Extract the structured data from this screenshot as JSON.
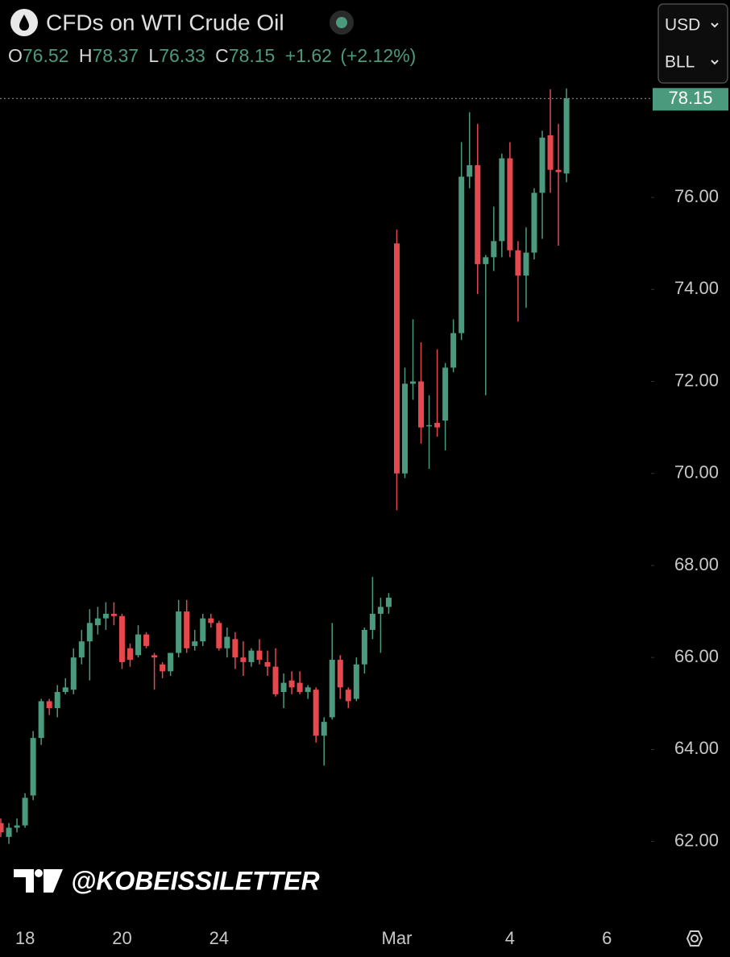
{
  "chart_data": {
    "type": "candlestick",
    "title": "CFDs on WTI Crude Oil",
    "ohlc_header": [
      {
        "label": "O",
        "value": 76.52
      },
      {
        "label": "H",
        "value": 78.37
      },
      {
        "label": "L",
        "value": 76.33
      },
      {
        "label": "C",
        "value": 78.15
      }
    ],
    "change": {
      "value": 1.62,
      "label": "+1.62"
    },
    "change_percent": {
      "value": 2.12,
      "label": "(+2.12%)"
    },
    "currency": "USD",
    "unit": "BLL",
    "watermark": "@KOBEISSILETTER",
    "up_color": "#4c9a7e",
    "down_color": "#e5484d",
    "categories": [
      null,
      null,
      null,
      "18",
      null,
      null,
      null,
      null,
      null,
      null,
      null,
      null,
      null,
      null,
      null,
      "20",
      null,
      null,
      null,
      null,
      null,
      null,
      null,
      null,
      null,
      null,
      null,
      "24",
      null,
      null,
      null,
      null,
      null,
      null,
      null,
      null,
      null,
      null,
      null,
      null,
      null,
      null,
      null,
      null,
      null,
      null,
      null,
      null,
      null,
      "Mar",
      null,
      null,
      null,
      null,
      null,
      null,
      null,
      null,
      null,
      null,
      null,
      null,
      null,
      "4",
      null,
      null,
      null,
      null,
      null,
      null,
      null,
      null,
      null,
      null,
      null,
      "6"
    ],
    "open": [
      62.4,
      62.1,
      62.3,
      62.35,
      63.0,
      64.25,
      65.05,
      64.9,
      65.25,
      65.3,
      66.0,
      66.35,
      66.7,
      66.85,
      66.95,
      66.9,
      66.2,
      66.05,
      66.5,
      66.05,
      65.85,
      65.7,
      66.1,
      67.0,
      66.25,
      66.35,
      66.85,
      66.75,
      66.2,
      66.4,
      66.0,
      65.9,
      66.15,
      65.9,
      65.8,
      65.25,
      65.5,
      65.45,
      65.25,
      65.3,
      64.3,
      64.7,
      65.95,
      65.3,
      65.1,
      65.85,
      66.6,
      66.95,
      67.1,
      75.0,
      70.0,
      71.95,
      72.0,
      71.05,
      71.1,
      71.15,
      72.3,
      73.05,
      76.45,
      76.7,
      74.55,
      74.7,
      75.05,
      76.85,
      74.85,
      74.3,
      74.8,
      76.1,
      77.35,
      76.6,
      76.52,
      null,
      null,
      null,
      null,
      null
    ],
    "high": [
      62.5,
      62.4,
      62.5,
      63.05,
      64.4,
      65.1,
      65.1,
      65.4,
      65.55,
      66.2,
      66.6,
      67.05,
      67.1,
      67.2,
      67.2,
      66.95,
      66.3,
      66.7,
      66.55,
      66.1,
      65.9,
      66.1,
      67.25,
      67.25,
      66.6,
      66.95,
      66.95,
      66.8,
      66.65,
      66.55,
      66.35,
      66.2,
      66.4,
      66.15,
      66.2,
      65.65,
      65.7,
      65.7,
      65.4,
      65.35,
      64.7,
      66.75,
      66.05,
      65.35,
      66.0,
      66.65,
      67.75,
      67.3,
      67.4,
      75.3,
      72.3,
      73.35,
      72.85,
      71.7,
      72.7,
      72.4,
      73.35,
      77.2,
      77.85,
      77.6,
      74.75,
      75.8,
      76.95,
      77.2,
      75.05,
      75.35,
      76.2,
      77.45,
      78.35,
      77.6,
      78.37,
      null,
      null,
      null,
      null,
      null
    ],
    "low": [
      62.1,
      61.95,
      62.2,
      62.3,
      62.9,
      64.1,
      64.75,
      64.7,
      65.2,
      65.2,
      65.85,
      65.5,
      66.5,
      66.6,
      66.7,
      65.75,
      65.8,
      66.0,
      66.2,
      65.3,
      65.55,
      65.6,
      66.0,
      66.1,
      66.15,
      66.25,
      66.65,
      66.15,
      66.0,
      65.75,
      65.6,
      65.8,
      65.85,
      65.6,
      65.15,
      64.9,
      65.2,
      65.2,
      65.1,
      64.15,
      63.65,
      64.65,
      65.1,
      64.9,
      65.05,
      65.65,
      66.4,
      66.1,
      66.95,
      69.2,
      69.9,
      71.6,
      70.65,
      70.1,
      70.8,
      70.5,
      72.2,
      72.9,
      76.2,
      73.9,
      71.7,
      74.4,
      74.7,
      74.7,
      73.3,
      73.6,
      74.65,
      75.1,
      76.1,
      74.95,
      76.33,
      null,
      null,
      null,
      null,
      null
    ],
    "close": [
      62.2,
      62.3,
      62.35,
      62.95,
      64.25,
      65.05,
      64.9,
      65.25,
      65.35,
      66.0,
      66.35,
      66.75,
      66.85,
      66.95,
      66.9,
      65.9,
      65.95,
      66.5,
      66.25,
      66.0,
      65.7,
      66.1,
      67.0,
      66.2,
      66.35,
      66.85,
      66.75,
      66.2,
      66.45,
      66.0,
      65.9,
      66.15,
      65.95,
      65.8,
      65.2,
      65.45,
      65.35,
      65.25,
      65.35,
      64.3,
      64.6,
      65.95,
      65.35,
      65.05,
      65.85,
      66.6,
      66.95,
      67.1,
      67.3,
      70.0,
      71.95,
      72.0,
      71.0,
      71.05,
      71.0,
      72.3,
      73.05,
      76.45,
      76.7,
      74.55,
      74.7,
      75.05,
      76.85,
      74.85,
      74.3,
      74.8,
      76.1,
      77.3,
      76.6,
      76.55,
      78.15,
      null,
      null,
      null,
      null,
      null
    ],
    "ylim": [
      60.4,
      78.4
    ],
    "yticks": [
      {
        "value": 62,
        "label": "62.00"
      },
      {
        "value": 64,
        "label": "64.00"
      },
      {
        "value": 66,
        "label": "66.00"
      },
      {
        "value": 68,
        "label": "68.00"
      },
      {
        "value": 70,
        "label": "70.00"
      },
      {
        "value": 72,
        "label": "72.00"
      },
      {
        "value": 74,
        "label": "74.00"
      },
      {
        "value": 76,
        "label": "76.00"
      }
    ],
    "last_price_line": true
  }
}
